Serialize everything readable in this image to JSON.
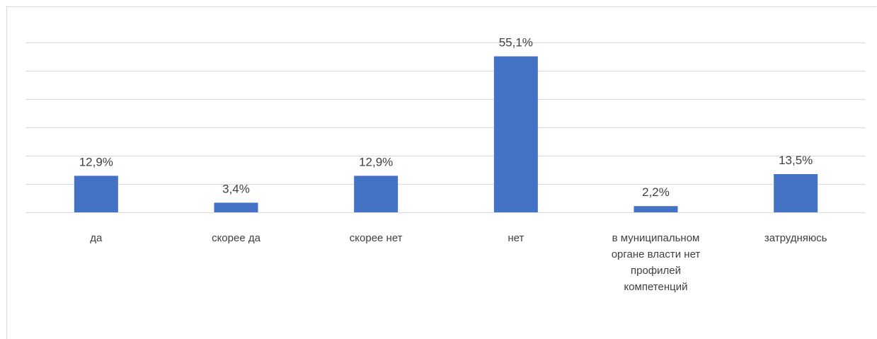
{
  "chart_data": {
    "type": "bar",
    "categories": [
      [
        "да"
      ],
      [
        "скорее да"
      ],
      [
        "скорее нет"
      ],
      [
        "нет"
      ],
      [
        "в муниципальном",
        "органе власти нет",
        "профилей",
        "компетенций"
      ],
      [
        "затрудняюсь"
      ]
    ],
    "values": [
      12.9,
      3.4,
      12.9,
      55.1,
      2.2,
      13.5
    ],
    "data_labels": [
      "12,9%",
      "3,4%",
      "12,9%",
      "55,1%",
      "2,2%",
      "13,5%"
    ],
    "ylim": [
      0,
      60
    ],
    "y_gridline_step": 10,
    "grid": true,
    "legend": "none",
    "title": "",
    "xlabel": "",
    "ylabel": "",
    "colors": {
      "bar": "#4472C4",
      "grid": "#d9d9d9",
      "text": "#404040"
    }
  }
}
